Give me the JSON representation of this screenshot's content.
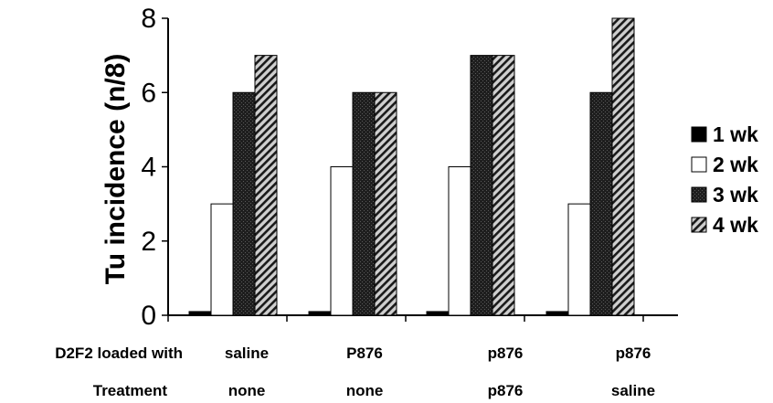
{
  "chart_data": {
    "type": "bar",
    "ylabel": "Tu incidence (n/8)",
    "ylim": [
      0,
      8
    ],
    "yticks": [
      0,
      2,
      4,
      6,
      8
    ],
    "groups": [
      {
        "loaded": "saline",
        "treatment": "none"
      },
      {
        "loaded": "P876",
        "treatment": "none"
      },
      {
        "loaded": "p876",
        "treatment": "p876"
      },
      {
        "loaded": "p876",
        "treatment": "saline"
      }
    ],
    "row_labels": {
      "loaded": "D2F2 loaded with",
      "treatment": "Treatment"
    },
    "series": [
      {
        "name": "1 wk",
        "values": [
          0.1,
          0.1,
          0.1,
          0.1
        ],
        "fill": "solid"
      },
      {
        "name": "2 wk",
        "values": [
          3,
          4,
          4,
          3
        ],
        "fill": "white"
      },
      {
        "name": "3 wk",
        "values": [
          6,
          6,
          7,
          6
        ],
        "fill": "dark-stipple"
      },
      {
        "name": "4 wk",
        "values": [
          7,
          6,
          7,
          8
        ],
        "fill": "hatch"
      }
    ],
    "legend_position": "right",
    "grid": false
  }
}
